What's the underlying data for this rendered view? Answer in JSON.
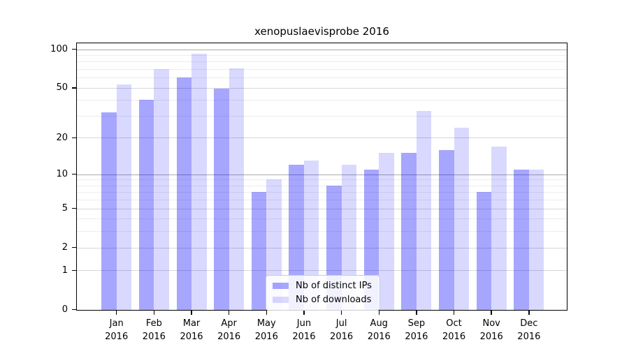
{
  "page": {
    "background": "#ffffff"
  },
  "chart_data": {
    "type": "bar",
    "title": "xenopuslaevisprobe 2016",
    "categories": [
      "Jan 2016",
      "Feb 2016",
      "Mar 2016",
      "Apr 2016",
      "May 2016",
      "Jun 2016",
      "Jul 2016",
      "Aug 2016",
      "Sep 2016",
      "Oct 2016",
      "Nov 2016",
      "Dec 2016"
    ],
    "series": [
      {
        "name": "Nb of distinct IPs",
        "color": "rgba(0,0,255,0.35)",
        "values": [
          32,
          40,
          60,
          49,
          7,
          12,
          8,
          11,
          15,
          16,
          7,
          11
        ]
      },
      {
        "name": "Nb of downloads",
        "color": "rgba(0,0,255,0.15)",
        "values": [
          53,
          70,
          92,
          71,
          9,
          13,
          12,
          15,
          33,
          24,
          17,
          11
        ]
      }
    ],
    "xlabel": "",
    "ylabel": "",
    "yscale": "log1p",
    "ylim": [
      0,
      112
    ],
    "y_major_ticks": [
      0,
      1,
      2,
      5,
      10,
      20,
      50,
      100
    ],
    "y_minor_gridlines": [
      3,
      4,
      6,
      7,
      8,
      9,
      30,
      40,
      60,
      70,
      80,
      90
    ],
    "y_emphasized_gridlines": [
      10,
      100
    ],
    "grid": true,
    "legend": {
      "position": "lower center"
    },
    "colors": {
      "grid_major": "#d7d7d7",
      "grid_minor": "#ededed",
      "grid_emphasis": "#ababab",
      "axis": "#000000",
      "text": "#000000"
    }
  }
}
